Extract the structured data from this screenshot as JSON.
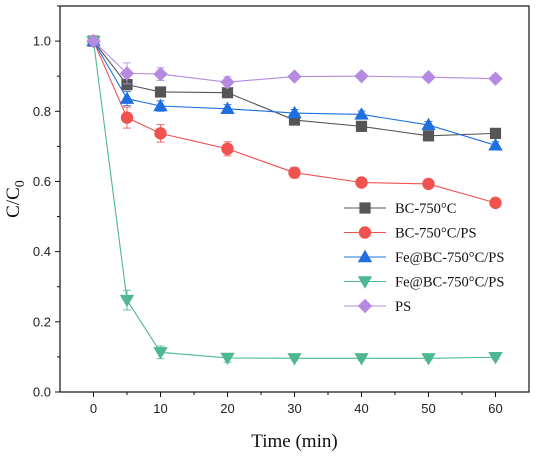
{
  "chart_data": {
    "type": "line",
    "xlabel": "Time (min)",
    "ylabel_main": "C/C",
    "ylabel_sub": "0",
    "xlim": [
      -5,
      65
    ],
    "ylim": [
      0.0,
      1.1
    ],
    "x_ticks": [
      0,
      10,
      20,
      30,
      40,
      50,
      60
    ],
    "y_ticks": [
      0.0,
      0.2,
      0.4,
      0.6,
      0.8,
      1.0
    ],
    "grid": false,
    "legend_position": "bottom-right",
    "x": [
      0,
      5,
      10,
      20,
      30,
      40,
      50,
      60
    ],
    "series": [
      {
        "name": "BC-750°C",
        "marker": "square",
        "color": "#555555",
        "values": [
          1.0,
          0.876,
          0.855,
          0.853,
          0.775,
          0.757,
          0.73,
          0.737
        ],
        "errors": [
          0,
          0.015,
          0.012,
          0.01,
          0.012,
          0.01,
          0.008,
          0.008
        ]
      },
      {
        "name": "BC-750°C/PS",
        "marker": "circle",
        "color": "#F0524F",
        "values": [
          1.0,
          0.782,
          0.737,
          0.693,
          0.625,
          0.597,
          0.593,
          0.539
        ],
        "errors": [
          0,
          0.03,
          0.025,
          0.02,
          0.015,
          0.008,
          0.008,
          0.008
        ]
      },
      {
        "name": "Fe@BC-750°C/PS",
        "marker": "triangle-up",
        "color": "#1F6FE0",
        "values": [
          1.0,
          0.836,
          0.815,
          0.807,
          0.795,
          0.791,
          0.761,
          0.703
        ],
        "errors": [
          0,
          0.02,
          0.015,
          0.012,
          0.01,
          0.01,
          0.01,
          0.01
        ]
      },
      {
        "name": "Fe@BC-750°C/PS",
        "marker": "triangle-down",
        "color": "#4FB890",
        "values": [
          1.0,
          0.262,
          0.113,
          0.097,
          0.096,
          0.096,
          0.096,
          0.099
        ],
        "errors": [
          0,
          0.028,
          0.018,
          0.012,
          0.005,
          0.005,
          0.005,
          0.005
        ]
      },
      {
        "name": "PS",
        "marker": "diamond",
        "color": "#B58AE0",
        "values": [
          1.0,
          0.908,
          0.906,
          0.883,
          0.899,
          0.9,
          0.897,
          0.893
        ],
        "errors": [
          0,
          0.03,
          0.018,
          0.015,
          0.008,
          0.008,
          0.008,
          0.008
        ]
      }
    ]
  }
}
